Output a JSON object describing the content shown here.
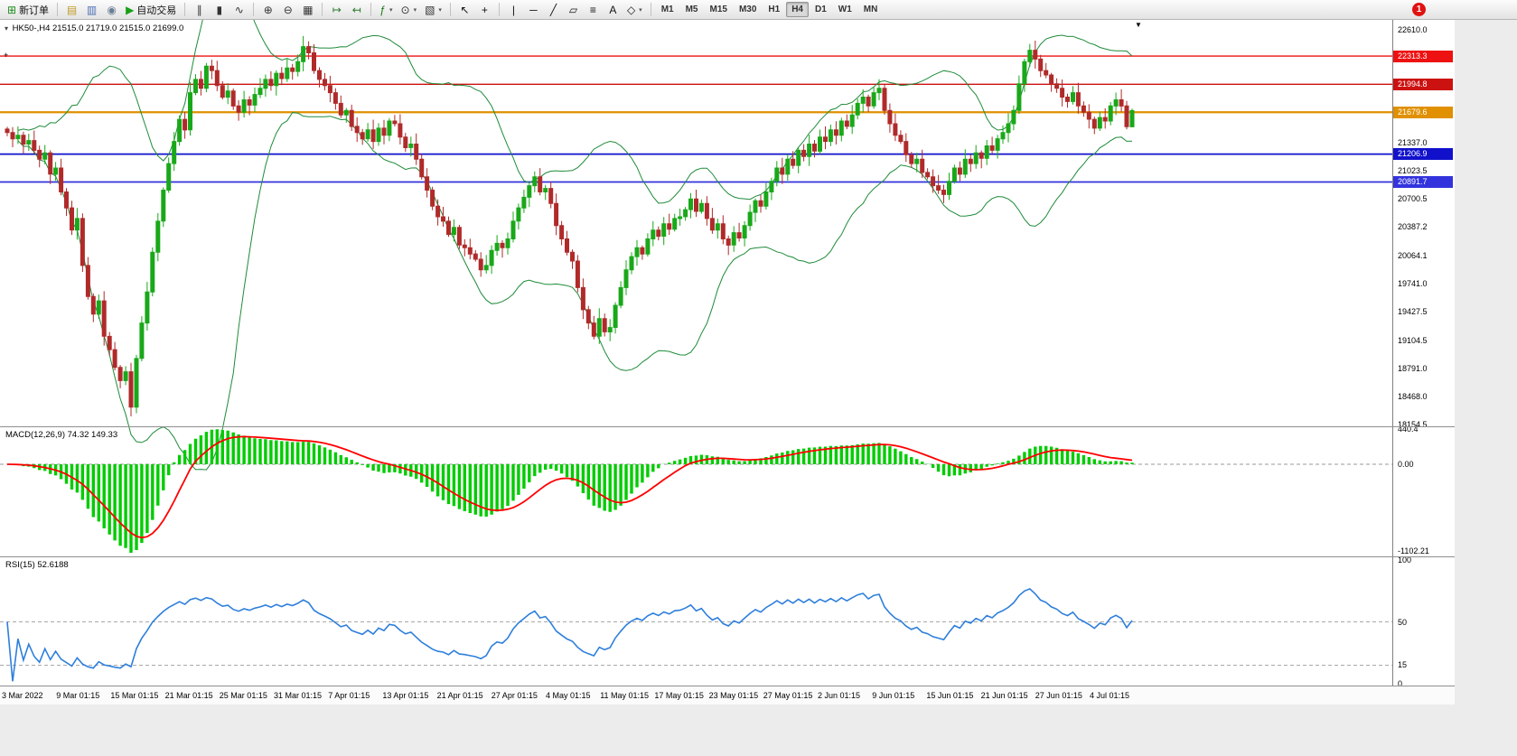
{
  "toolbar": {
    "notification": "1",
    "items": [
      {
        "name": "new-order-button",
        "icon": "new-order-icon",
        "glyph": "⊞",
        "color": "#1e8e1e",
        "label": "新订单"
      },
      {
        "name": "sep"
      },
      {
        "name": "new-chart-button",
        "icon": "new-chart-icon",
        "glyph": "▤",
        "color": "#c09a28"
      },
      {
        "name": "profiles-button",
        "icon": "profiles-icon",
        "glyph": "▥",
        "color": "#4a6fb5"
      },
      {
        "name": "market-watch-button",
        "icon": "market-watch-icon",
        "glyph": "◉",
        "color": "#6a7f95"
      },
      {
        "name": "auto-trading-button",
        "icon": "auto-trading-icon",
        "glyph": "▶",
        "color": "#18a018",
        "label": "自动交易"
      },
      {
        "name": "sep"
      },
      {
        "name": "bar-chart-button",
        "icon": "bar-chart-icon",
        "glyph": "∥",
        "color": "#333333"
      },
      {
        "name": "candlestick-chart-button",
        "icon": "candlestick-chart-icon",
        "glyph": "▮",
        "color": "#333333"
      },
      {
        "name": "line-chart-button",
        "icon": "line-chart-icon",
        "glyph": "∿",
        "color": "#333333"
      },
      {
        "name": "sep"
      },
      {
        "name": "zoom-in-button",
        "icon": "zoom-in-icon",
        "glyph": "⊕",
        "color": "#333333"
      },
      {
        "name": "zoom-out-button",
        "icon": "zoom-out-icon",
        "glyph": "⊖",
        "color": "#333333"
      },
      {
        "name": "tile-windows-button",
        "icon": "tile-windows-icon",
        "glyph": "▦",
        "color": "#333333"
      },
      {
        "name": "sep"
      },
      {
        "name": "auto-scroll-button",
        "icon": "auto-scroll-icon",
        "glyph": "↦",
        "color": "#2a7a2a"
      },
      {
        "name": "chart-shift-button",
        "icon": "chart-shift-icon",
        "glyph": "↤",
        "color": "#2a7a2a"
      },
      {
        "name": "sep"
      },
      {
        "name": "indicators-button",
        "icon": "indicators-icon",
        "glyph": "ƒ",
        "color": "#157a15",
        "caret": true
      },
      {
        "name": "periods-button",
        "icon": "periods-icon",
        "glyph": "⊙",
        "color": "#333333",
        "caret": true
      },
      {
        "name": "templates-button",
        "icon": "templates-icon",
        "glyph": "▧",
        "color": "#333333",
        "caret": true
      },
      {
        "name": "sep"
      },
      {
        "name": "cursor-button",
        "icon": "cursor-icon",
        "glyph": "↖",
        "color": "#111111"
      },
      {
        "name": "crosshair-button",
        "icon": "crosshair-icon",
        "glyph": "+",
        "color": "#111111"
      },
      {
        "name": "sep"
      },
      {
        "name": "vertical-line-button",
        "icon": "vertical-line-icon",
        "glyph": "|",
        "color": "#111111"
      },
      {
        "name": "horizontal-line-button",
        "icon": "horizontal-line-icon",
        "glyph": "─",
        "color": "#111111"
      },
      {
        "name": "trendline-button",
        "icon": "trendline-icon",
        "glyph": "╱",
        "color": "#111111"
      },
      {
        "name": "channel-button",
        "icon": "channel-icon",
        "glyph": "▱",
        "color": "#111111"
      },
      {
        "name": "fibonacci-button",
        "icon": "fibonacci-icon",
        "glyph": "≡",
        "color": "#111111"
      },
      {
        "name": "text-button",
        "icon": "text-icon",
        "glyph": "A",
        "color": "#111111"
      },
      {
        "name": "shapes-button",
        "icon": "shapes-icon",
        "glyph": "◇",
        "color": "#111111",
        "caret": true
      },
      {
        "name": "sep"
      }
    ],
    "timeframes": {
      "items": [
        "M1",
        "M5",
        "M15",
        "M30",
        "H1",
        "H4",
        "D1",
        "W1",
        "MN"
      ],
      "active": "H4"
    }
  },
  "chart": {
    "title_symbol": "HK50-,H4",
    "title_ohlc": "21515.0 21719.0 21515.0 21699.0",
    "shift_marker": "▼",
    "collapse_arrow": "▾",
    "price_range": {
      "top": 22610.0,
      "bottom": 18154.5
    },
    "y_ticks": [
      "22610.0",
      "21337.0",
      "21023.5",
      "20700.5",
      "20387.2",
      "20064.1",
      "19741.0",
      "19427.5",
      "19104.5",
      "18791.0",
      "18468.0",
      "18154.5"
    ],
    "levels": [
      {
        "price": 22313.3,
        "label": "22313.3",
        "color": "#ee1111",
        "width": 1.4
      },
      {
        "price": 21994.8,
        "label": "21994.8",
        "color": "#cc1111",
        "width": 1.4
      },
      {
        "price": 21679.6,
        "label": "21679.6",
        "color": "#e09000",
        "width": 2.2
      },
      {
        "price": 21206.9,
        "label": "21206.9",
        "color": "#1111cc",
        "width": 1.8
      },
      {
        "price": 20891.7,
        "label": "20891.7",
        "color": "#3333dd",
        "width": 1.8
      }
    ],
    "colors": {
      "bull": "#19a819",
      "bear": "#b02a2a",
      "bollinger": "#1f8b3a",
      "macd_histogram": "#00cc00",
      "macd_signal": "#ff0000",
      "rsi_line": "#2e7fdc"
    }
  },
  "macd": {
    "label": "MACD(12,26,9) 74.32 149.33",
    "value_main": "74.32",
    "value_signal": "149.33",
    "ticks": [
      {
        "text": "440.4",
        "value": 440.4
      },
      {
        "text": "0.00",
        "value": 0
      },
      {
        "text": "-1102.21",
        "value": -1102.21
      }
    ],
    "range": {
      "top": 440.4,
      "bottom": -1102.21
    }
  },
  "rsi": {
    "label": "RSI(15) 52.6188",
    "value": "52.6188",
    "ticks": [
      {
        "text": "100",
        "value": 100
      },
      {
        "text": "50",
        "value": 50
      },
      {
        "text": "15",
        "value": 15
      },
      {
        "text": "0",
        "value": 0
      }
    ],
    "level_lines": [
      50,
      15
    ]
  },
  "time_axis": [
    "3 Mar 2022",
    "9 Mar 01:15",
    "15 Mar 01:15",
    "21 Mar 01:15",
    "25 Mar 01:15",
    "31 Mar 01:15",
    "7 Apr 01:15",
    "13 Apr 01:15",
    "21 Apr 01:15",
    "27 Apr 01:15",
    "4 May 01:15",
    "11 May 01:15",
    "17 May 01:15",
    "23 May 01:15",
    "27 May 01:15",
    "2 Jun 01:15",
    "9 Jun 01:15",
    "15 Jun 01:15",
    "21 Jun 01:15",
    "27 Jun 01:15",
    "4 Jul 01:15"
  ],
  "chart_data": {
    "type": "candlestick",
    "symbol": "HK50-",
    "timeframe": "H4",
    "last_bar": {
      "open": 21515.0,
      "high": 21719.0,
      "low": 21515.0,
      "close": 21699.0
    },
    "indicators": {
      "bollinger_period": 20,
      "bollinger_deviation": 2,
      "macd": [
        12,
        26,
        9
      ],
      "rsi_period": 15
    },
    "closes": [
      21450,
      21380,
      21420,
      21320,
      21360,
      21250,
      21150,
      21220,
      20980,
      21050,
      20780,
      20600,
      20350,
      20480,
      19950,
      19600,
      19400,
      19550,
      19150,
      19000,
      18800,
      18650,
      18750,
      18350,
      18900,
      19300,
      19650,
      20100,
      20450,
      20800,
      21100,
      21350,
      21600,
      21480,
      21900,
      22050,
      21950,
      22200,
      22150,
      21980,
      21850,
      21920,
      21750,
      21680,
      21820,
      21760,
      21880,
      21950,
      22050,
      21980,
      22120,
      22060,
      22180,
      22140,
      22250,
      22420,
      22350,
      22150,
      22050,
      21980,
      21900,
      21780,
      21650,
      21700,
      21520,
      21450,
      21380,
      21480,
      21350,
      21500,
      21420,
      21580,
      21550,
      21400,
      21280,
      21320,
      21150,
      20950,
      20800,
      20620,
      20500,
      20450,
      20300,
      20380,
      20180,
      20150,
      20080,
      20020,
      19900,
      19950,
      20120,
      20200,
      20150,
      20250,
      20450,
      20600,
      20720,
      20850,
      20950,
      20780,
      20820,
      20650,
      20400,
      20250,
      20100,
      20000,
      19700,
      19450,
      19300,
      19150,
      19350,
      19200,
      19250,
      19500,
      19700,
      19900,
      20050,
      20150,
      20080,
      20250,
      20350,
      20280,
      20420,
      20360,
      20480,
      20500,
      20580,
      20700,
      20560,
      20650,
      20480,
      20350,
      20420,
      20250,
      20180,
      20320,
      20260,
      20400,
      20550,
      20680,
      20620,
      20780,
      20900,
      21050,
      20980,
      21150,
      21080,
      21250,
      21180,
      21320,
      21240,
      21400,
      21350,
      21480,
      21420,
      21580,
      21520,
      21650,
      21780,
      21850,
      21750,
      21900,
      21950,
      21700,
      21550,
      21420,
      21350,
      21200,
      21100,
      21150,
      21000,
      20950,
      20850,
      20800,
      20750,
      20900,
      21050,
      20980,
      21150,
      21100,
      21220,
      21160,
      21300,
      21250,
      21380,
      21450,
      21550,
      21700,
      22000,
      22250,
      22380,
      22280,
      22150,
      22100,
      22000,
      21950,
      21850,
      21800,
      21900,
      21750,
      21680,
      21600,
      21500,
      21620,
      21580,
      21750,
      21820,
      21750,
      21515,
      21699
    ]
  }
}
